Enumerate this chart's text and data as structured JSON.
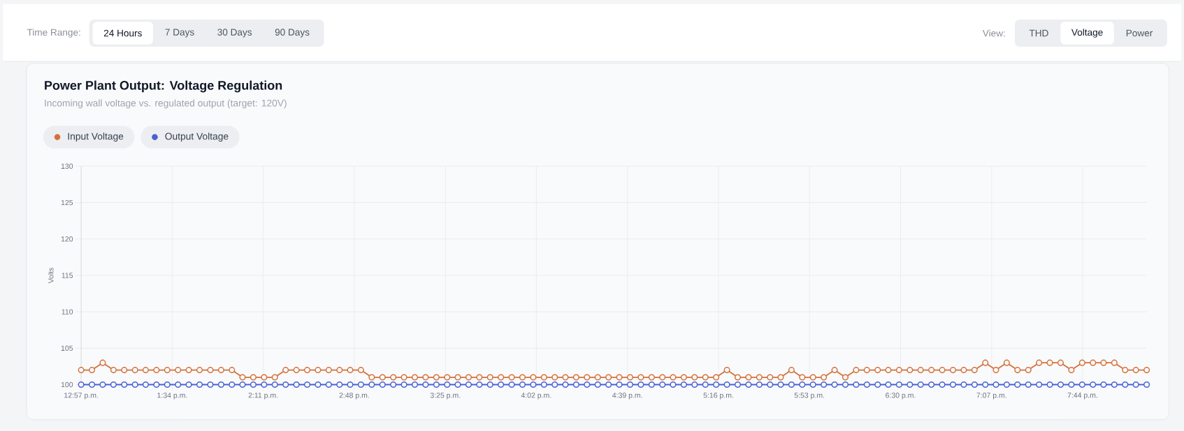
{
  "chart_data": {
    "type": "line",
    "title": "Power Plant Output: Voltage Regulation",
    "subtitle": "Incoming wall voltage vs. regulated output (target: 120V)",
    "ylabel": "Volts",
    "annotations": [
      "Time Range:",
      "24 Hours",
      "7 Days",
      "30 Days",
      "90 Days",
      "View:",
      "THD",
      "Voltage",
      "Power"
    ],
    "x": [
      12.95,
      13.023,
      13.096,
      13.169,
      13.242,
      13.315,
      13.387,
      13.46,
      13.533,
      13.606,
      13.679,
      13.752,
      13.825,
      13.898,
      13.971,
      14.043,
      14.116,
      14.189,
      14.262,
      14.335,
      14.408,
      14.481,
      14.554,
      14.627,
      14.7,
      14.772,
      14.845,
      14.918,
      14.991,
      15.064,
      15.137,
      15.21,
      15.283,
      15.356,
      15.429,
      15.501,
      15.574,
      15.647,
      15.72,
      15.793,
      15.866,
      15.939,
      16.012,
      16.085,
      16.158,
      16.23,
      16.303,
      16.376,
      16.449,
      16.522,
      16.595,
      16.668,
      16.741,
      16.814,
      16.887,
      16.959,
      17.032,
      17.105,
      17.178,
      17.251,
      17.324,
      17.397,
      17.47,
      17.543,
      17.616,
      17.688,
      17.761,
      17.834,
      17.907,
      17.98,
      18.053,
      18.126,
      18.199,
      18.272,
      18.345,
      18.417,
      18.49,
      18.563,
      18.636,
      18.709,
      18.782,
      18.855,
      18.928,
      19.001,
      19.074,
      19.146,
      19.219,
      19.292,
      19.365,
      19.438,
      19.511,
      19.584,
      19.657,
      19.73,
      19.803,
      19.875,
      19.948,
      20.021,
      20.094,
      20.167
    ],
    "series": [
      {
        "name": "Input Voltage",
        "color": "#d6703a",
        "values": [
          102,
          102,
          103,
          102,
          102,
          102,
          102,
          102,
          102,
          102,
          102,
          102,
          102,
          102,
          102,
          101,
          101,
          101,
          101,
          102,
          102,
          102,
          102,
          102,
          102,
          102,
          102,
          101,
          101,
          101,
          101,
          101,
          101,
          101,
          101,
          101,
          101,
          101,
          101,
          101,
          101,
          101,
          101,
          101,
          101,
          101,
          101,
          101,
          101,
          101,
          101,
          101,
          101,
          101,
          101,
          101,
          101,
          101,
          101,
          101,
          102,
          101,
          101,
          101,
          101,
          101,
          102,
          101,
          101,
          101,
          102,
          101,
          102,
          102,
          102,
          102,
          102,
          102,
          102,
          102,
          102,
          102,
          102,
          102,
          103,
          102,
          103,
          102,
          102,
          103,
          103,
          103,
          102,
          103,
          103,
          103,
          103,
          102,
          102,
          102
        ]
      },
      {
        "name": "Output Voltage",
        "color": "#4a60d6",
        "values": [
          100,
          100,
          100,
          100,
          100,
          100,
          100,
          100,
          100,
          100,
          100,
          100,
          100,
          100,
          100,
          100,
          100,
          100,
          100,
          100,
          100,
          100,
          100,
          100,
          100,
          100,
          100,
          100,
          100,
          100,
          100,
          100,
          100,
          100,
          100,
          100,
          100,
          100,
          100,
          100,
          100,
          100,
          100,
          100,
          100,
          100,
          100,
          100,
          100,
          100,
          100,
          100,
          100,
          100,
          100,
          100,
          100,
          100,
          100,
          100,
          100,
          100,
          100,
          100,
          100,
          100,
          100,
          100,
          100,
          100,
          100,
          100,
          100,
          100,
          100,
          100,
          100,
          100,
          100,
          100,
          100,
          100,
          100,
          100,
          100,
          100,
          100,
          100,
          100,
          100,
          100,
          100,
          100,
          100,
          100,
          100,
          100,
          100,
          100,
          100
        ]
      }
    ],
    "xlim": [
      12.95,
      20.167
    ],
    "xticks": [
      {
        "value": 12.95,
        "label": "12:57 p.m."
      },
      {
        "value": 13.567,
        "label": "1:34 p.m."
      },
      {
        "value": 14.183,
        "label": "2:11 p.m."
      },
      {
        "value": 14.8,
        "label": "2:48 p.m."
      },
      {
        "value": 15.417,
        "label": "3:25 p.m."
      },
      {
        "value": 16.033,
        "label": "4:02 p.m."
      },
      {
        "value": 16.65,
        "label": "4:39 p.m."
      },
      {
        "value": 17.267,
        "label": "5:16 p.m."
      },
      {
        "value": 17.883,
        "label": "5:53 p.m."
      },
      {
        "value": 18.5,
        "label": "6:30 p.m."
      },
      {
        "value": 19.117,
        "label": "7:07 p.m."
      },
      {
        "value": 19.733,
        "label": "7:44 p.m."
      }
    ],
    "ylim": [
      100,
      130
    ],
    "yticks": [
      100,
      105,
      110,
      115,
      120,
      125,
      130
    ],
    "grid": true,
    "legend": "top left",
    "marker": "circle",
    "line_style": "solid"
  }
}
